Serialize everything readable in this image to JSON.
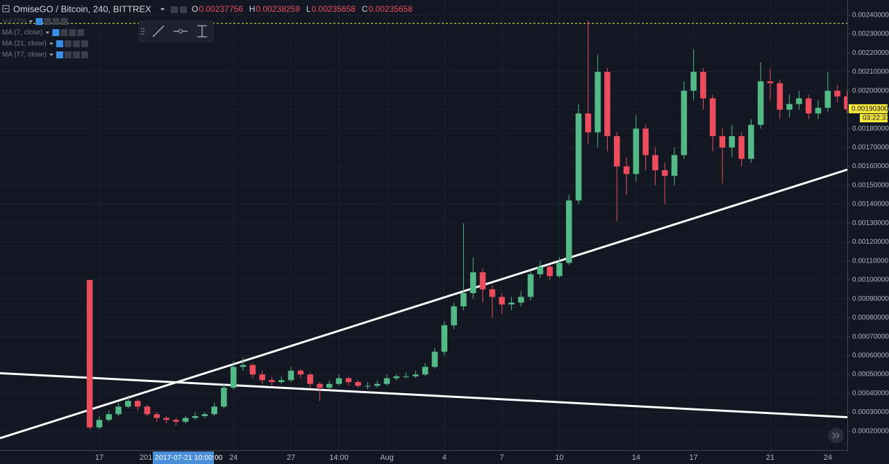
{
  "chart_data": {
    "type": "candlestick",
    "title": "OmiseGO / Bitcoin, 240, BITTREX",
    "ohlc_legend": [
      {
        "label": "O",
        "value": 0.00237756
      },
      {
        "label": "H",
        "value": 0.00238259
      },
      {
        "label": "L",
        "value": 0.00235658
      },
      {
        "label": "C",
        "value": 0.00235658
      }
    ],
    "indicators": [
      "Vol (20)",
      "MA (7, close)",
      "MA (21, close)",
      "MA (77, close)"
    ],
    "open": [
      0.001,
      0.00022,
      0.00026,
      0.00029,
      0.00033,
      0.00036,
      0.00033,
      0.00029,
      0.00027,
      0.00026,
      0.00025,
      0.00027,
      0.00028,
      0.00029,
      0.00033,
      0.00043,
      0.00054,
      0.00055,
      0.0005,
      0.00047,
      0.00046,
      0.00047,
      0.00052,
      0.0005,
      0.00045,
      0.00043,
      0.00045,
      0.00048,
      0.00046,
      0.00044,
      0.00044,
      0.00045,
      0.00048,
      0.00049,
      0.00049,
      0.0005,
      0.00054,
      0.00062,
      0.00076,
      0.00086,
      0.00093,
      0.00104,
      0.00095,
      0.00091,
      0.00087,
      0.00088,
      0.00091,
      0.00103,
      0.00107,
      0.00102,
      0.00109,
      0.00142,
      0.00188,
      0.00178,
      0.0021,
      0.00176,
      0.0016,
      0.00156,
      0.0018,
      0.00166,
      0.00158,
      0.00155,
      0.00166,
      0.002,
      0.0021,
      0.00196,
      0.00176,
      0.0017,
      0.00176,
      0.00164,
      0.00182,
      0.00205,
      0.00204,
      0.0019,
      0.00193,
      0.00196,
      0.00188,
      0.00191,
      0.002,
      0.00197
    ],
    "high": [
      0.001,
      0.00028,
      0.00031,
      0.00035,
      0.00039,
      0.00037,
      0.00034,
      0.0003,
      0.00028,
      0.00027,
      0.00028,
      0.0003,
      0.0003,
      0.00035,
      0.00045,
      0.00057,
      0.00059,
      0.00056,
      0.00052,
      0.00049,
      0.00049,
      0.00054,
      0.00053,
      0.00051,
      0.00046,
      0.00047,
      0.0005,
      0.00049,
      0.00047,
      0.00046,
      0.00047,
      0.0005,
      0.0005,
      0.00051,
      0.00052,
      0.00056,
      0.00064,
      0.00078,
      0.00088,
      0.0013,
      0.00112,
      0.00106,
      0.00097,
      0.00093,
      0.00091,
      0.00094,
      0.00105,
      0.0011,
      0.00108,
      0.00112,
      0.00145,
      0.00193,
      0.00237,
      0.00219,
      0.00212,
      0.00178,
      0.00165,
      0.00187,
      0.00182,
      0.0017,
      0.00162,
      0.0017,
      0.00205,
      0.00222,
      0.00212,
      0.00198,
      0.0018,
      0.00182,
      0.00178,
      0.00185,
      0.00215,
      0.00212,
      0.00206,
      0.00198,
      0.002,
      0.00198,
      0.00195,
      0.0021,
      0.00203,
      0.002
    ],
    "low": [
      0.00021,
      0.00021,
      0.00025,
      0.00028,
      0.00032,
      0.00031,
      0.00028,
      0.00025,
      0.00024,
      0.00023,
      0.00024,
      0.00026,
      0.00027,
      0.00028,
      0.00032,
      0.00042,
      0.00052,
      0.00048,
      0.00045,
      0.00044,
      0.00045,
      0.00046,
      0.00048,
      0.00043,
      0.00036,
      0.00042,
      0.00044,
      0.00044,
      0.00043,
      0.00042,
      0.00043,
      0.00044,
      0.00047,
      0.00048,
      0.00048,
      0.00049,
      0.00053,
      0.0006,
      0.00074,
      0.00084,
      0.0009,
      0.00088,
      0.0008,
      0.00082,
      0.00084,
      0.00086,
      0.00089,
      0.00101,
      0.001,
      0.00101,
      0.00108,
      0.0014,
      0.00172,
      0.0017,
      0.00168,
      0.00131,
      0.00145,
      0.00152,
      0.00158,
      0.0015,
      0.0014,
      0.0015,
      0.00164,
      0.00195,
      0.0019,
      0.00168,
      0.00151,
      0.00165,
      0.0016,
      0.00162,
      0.0018,
      0.00195,
      0.00185,
      0.00186,
      0.0019,
      0.00185,
      0.00185,
      0.00189,
      0.00194,
      0.00188
    ],
    "close": [
      0.00022,
      0.00026,
      0.00029,
      0.00033,
      0.00036,
      0.00033,
      0.00029,
      0.00027,
      0.00026,
      0.00025,
      0.00027,
      0.00028,
      0.00029,
      0.00033,
      0.00043,
      0.00054,
      0.00055,
      0.0005,
      0.00047,
      0.00046,
      0.00047,
      0.00052,
      0.0005,
      0.00045,
      0.00043,
      0.00045,
      0.00048,
      0.00046,
      0.00044,
      0.00044,
      0.00045,
      0.00048,
      0.00049,
      0.00049,
      0.0005,
      0.00054,
      0.00062,
      0.00076,
      0.00086,
      0.00093,
      0.00104,
      0.00095,
      0.00091,
      0.00087,
      0.00088,
      0.00091,
      0.00103,
      0.00107,
      0.00102,
      0.00109,
      0.00142,
      0.00188,
      0.00178,
      0.0021,
      0.00176,
      0.0016,
      0.00156,
      0.0018,
      0.00166,
      0.00158,
      0.00155,
      0.00166,
      0.002,
      0.0021,
      0.00196,
      0.00176,
      0.0017,
      0.00176,
      0.00164,
      0.00182,
      0.00205,
      0.00204,
      0.0019,
      0.00193,
      0.00196,
      0.00188,
      0.00191,
      0.002,
      0.00197,
      0.001903
    ],
    "up_color": "#53b987",
    "down_color": "#eb4d5c",
    "ylim": [
      0.0001,
      0.00248
    ],
    "yticks": [
      {
        "value": 0.0002,
        "label": "0.00020000"
      },
      {
        "value": 0.0003,
        "label": "0.00030000"
      },
      {
        "value": 0.0004,
        "label": "0.00040000"
      },
      {
        "value": 0.0005,
        "label": "0.00050000"
      },
      {
        "value": 0.0006,
        "label": "0.00060000"
      },
      {
        "value": 0.0007,
        "label": "0.00070000"
      },
      {
        "value": 0.0008,
        "label": "0.00080000"
      },
      {
        "value": 0.0009,
        "label": "0.00090000"
      },
      {
        "value": 0.001,
        "label": "0.00100000"
      },
      {
        "value": 0.0011,
        "label": "0.00110000"
      },
      {
        "value": 0.0012,
        "label": "0.00120000"
      },
      {
        "value": 0.0013,
        "label": "0.00130000"
      },
      {
        "value": 0.0014,
        "label": "0.00140000"
      },
      {
        "value": 0.0015,
        "label": "0.00150000"
      },
      {
        "value": 0.0016,
        "label": "0.00160000"
      },
      {
        "value": 0.0017,
        "label": "0.00170000"
      },
      {
        "value": 0.0018,
        "label": "0.00180000"
      },
      {
        "value": 0.0019,
        "label": "0.00190000"
      },
      {
        "value": 0.002,
        "label": "0.00200000"
      },
      {
        "value": 0.0021,
        "label": "0.00210000"
      },
      {
        "value": 0.0022,
        "label": "0.00220000"
      },
      {
        "value": 0.0023,
        "label": "0.00230000"
      },
      {
        "value": 0.0024,
        "label": "0.00240000"
      }
    ],
    "xlim": [
      -9.36,
      79.04
    ],
    "xticks": [
      {
        "value": 1,
        "label": "17"
      },
      {
        "value": 15,
        "label": "24"
      },
      {
        "value": 21,
        "label": "27"
      },
      {
        "value": 26,
        "label": "14:00"
      },
      {
        "value": 31,
        "label": "Aug"
      },
      {
        "value": 37,
        "label": "4"
      },
      {
        "value": 43,
        "label": "7"
      },
      {
        "value": 49,
        "label": "10"
      },
      {
        "value": 57,
        "label": "14"
      },
      {
        "value": 63,
        "label": "17"
      },
      {
        "value": 71,
        "label": "21"
      },
      {
        "value": 77,
        "label": "24"
      }
    ],
    "grid": true,
    "crosshair_time": "2017-07-21 10:00:00",
    "clipped_label": "201",
    "last_price": {
      "value": 0.001903,
      "label": "0.00190300"
    },
    "countdown": "03:22:31",
    "trend_lines": [
      {
        "start": 0.000163,
        "end": 0.001583
      },
      {
        "start": 0.000507,
        "end": 0.000274
      }
    ]
  }
}
